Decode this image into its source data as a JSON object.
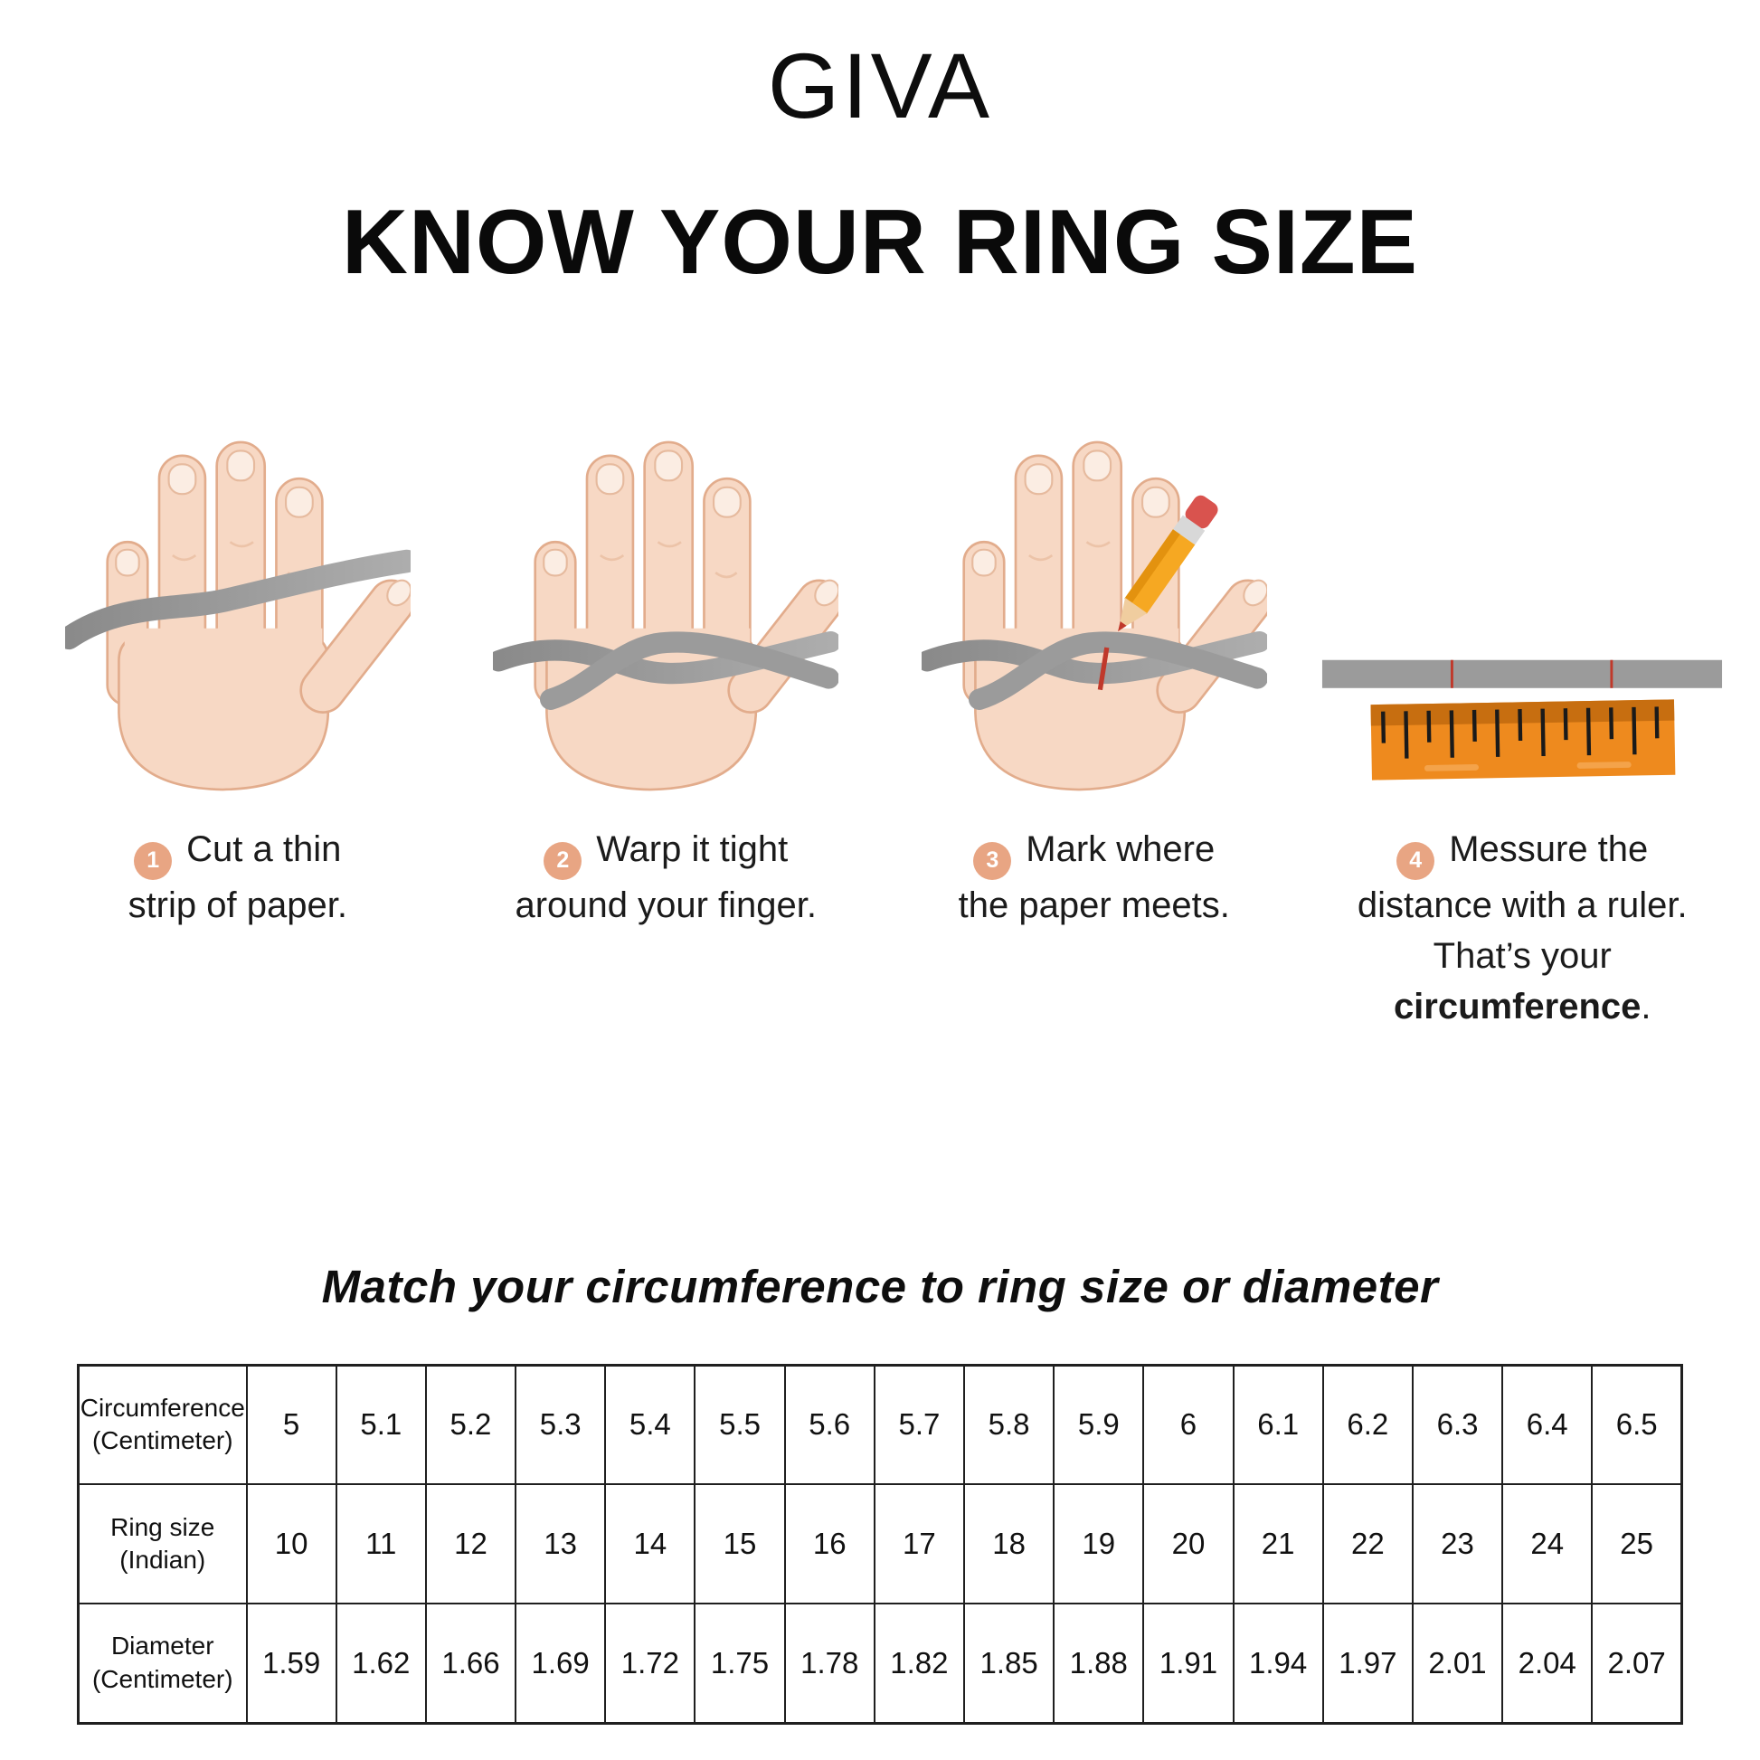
{
  "brand": {
    "logo_text": "GIVA"
  },
  "title": "KNOW YOUR RING SIZE",
  "steps": [
    {
      "number": "1",
      "line1": "Cut a thin",
      "line2": "strip of paper."
    },
    {
      "number": "2",
      "line1": "Warp it tight",
      "line2": "around your finger."
    },
    {
      "number": "3",
      "line1": "Mark where",
      "line2": "the paper meets."
    },
    {
      "number": "4",
      "line1": "Messure the",
      "line2": "distance with a ruler.",
      "line3_pre": "That’s your ",
      "line3_bold": "circumference",
      "line3_post": "."
    }
  ],
  "match_heading": "Match your circumference to ring size or diameter",
  "chart_data": {
    "type": "table",
    "title": "Match your circumference to ring size or diameter",
    "rows": [
      {
        "label": "Circumference (Centimeter)",
        "label_lines": [
          "Circumference",
          "(Centimeter)"
        ],
        "values": [
          "5",
          "5.1",
          "5.2",
          "5.3",
          "5.4",
          "5.5",
          "5.6",
          "5.7",
          "5.8",
          "5.9",
          "6",
          "6.1",
          "6.2",
          "6.3",
          "6.4",
          "6.5"
        ]
      },
      {
        "label": "Ring size (Indian)",
        "label_lines": [
          "Ring size",
          "(Indian)"
        ],
        "values": [
          "10",
          "11",
          "12",
          "13",
          "14",
          "15",
          "16",
          "17",
          "18",
          "19",
          "20",
          "21",
          "22",
          "23",
          "24",
          "25"
        ]
      },
      {
        "label": "Diameter (Centimeter)",
        "label_lines": [
          "Diameter",
          "(Centimeter)"
        ],
        "values": [
          "1.59",
          "1.62",
          "1.66",
          "1.69",
          "1.72",
          "1.75",
          "1.78",
          "1.82",
          "1.85",
          "1.88",
          "1.91",
          "1.94",
          "1.97",
          "2.01",
          "2.04",
          "2.07"
        ]
      }
    ]
  },
  "colors": {
    "badge": "#E8A583",
    "skin": "#F7D8C4",
    "skin_outline": "#E2AC8C",
    "nail": "#FBEDE3",
    "paper_strip": "#9B9B9B",
    "ruler_orange": "#EE8A1E",
    "ruler_dark_band": "#C76E10",
    "pencil_yellow": "#F6A822",
    "eraser_red": "#D9534E",
    "mark_red": "#C0392B",
    "text": "#111111"
  }
}
